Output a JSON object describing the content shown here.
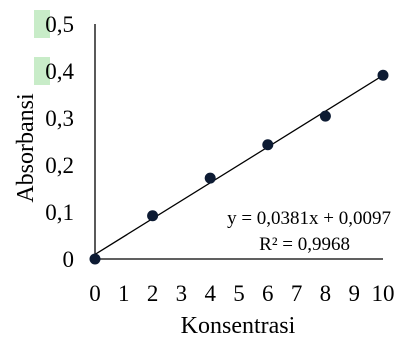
{
  "chart_data": {
    "type": "scatter",
    "title": "",
    "xlabel": "Konsentrasi",
    "ylabel": "Absorbansi",
    "xlim": [
      0,
      10
    ],
    "ylim": [
      0,
      0.5
    ],
    "x_ticks": [
      "0",
      "1",
      "2",
      "3",
      "4",
      "5",
      "6",
      "7",
      "8",
      "9",
      "10"
    ],
    "y_ticks": [
      "0",
      "0,1",
      "0,2",
      "0,3",
      "0,4",
      "0,5"
    ],
    "highlighted_y_ticks": [
      "0,4",
      "0,5"
    ],
    "highlight_color": "#c8ecc8",
    "points": [
      {
        "x": 0,
        "y": 0.0
      },
      {
        "x": 2,
        "y": 0.092
      },
      {
        "x": 4,
        "y": 0.172
      },
      {
        "x": 6,
        "y": 0.243
      },
      {
        "x": 8,
        "y": 0.304
      },
      {
        "x": 10,
        "y": 0.391
      }
    ],
    "trendline": {
      "slope": 0.0381,
      "intercept": 0.0097
    },
    "equation_label": "y = 0,0381x + 0,0097",
    "r2_label": "R² = 0,9968",
    "marker_color": "#0d1b33",
    "line_color": "#000000",
    "grid": false,
    "legend": "none"
  }
}
